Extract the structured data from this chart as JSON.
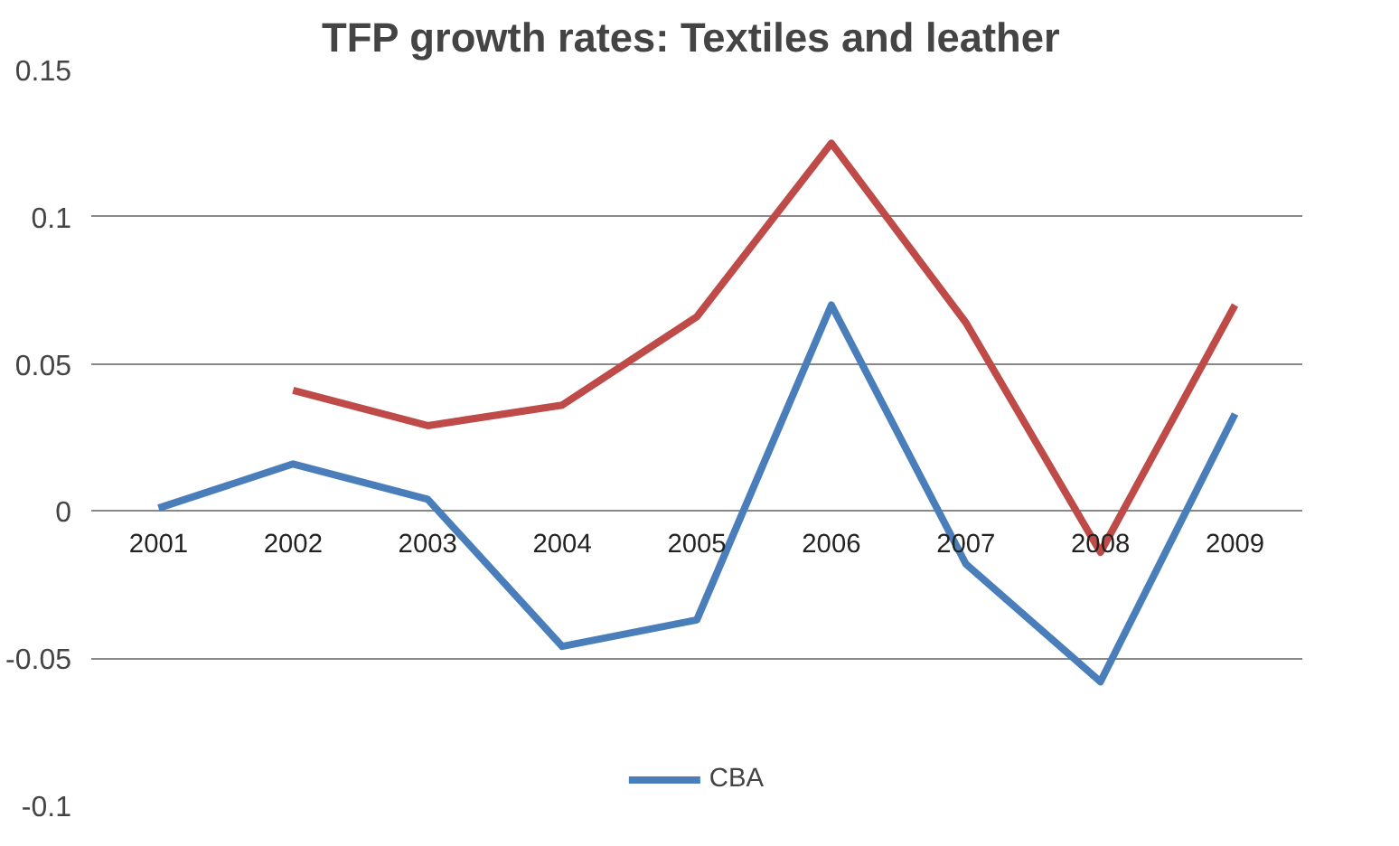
{
  "chart_data": {
    "type": "line",
    "title": "TFP growth rates: Textiles and  leather",
    "categories": [
      "2001",
      "2002",
      "2003",
      "2004",
      "2005",
      "2006",
      "2007",
      "2008",
      "2009"
    ],
    "series": [
      {
        "name": "CBA",
        "color": "#4a7ebb",
        "values": [
          0.001,
          0.016,
          0.004,
          -0.046,
          -0.037,
          0.07,
          -0.018,
          -0.058,
          0.033
        ]
      },
      {
        "color": "#be4b48",
        "values": [
          null,
          0.041,
          0.029,
          0.036,
          0.066,
          0.125,
          0.064,
          -0.014,
          0.07
        ]
      }
    ],
    "ylim": [
      -0.1,
      0.15
    ],
    "yticks": [
      -0.1,
      -0.05,
      0,
      0.05,
      0.1,
      0.15
    ],
    "grid": "y",
    "legend": "bottom",
    "marker": "none",
    "line_style": "solid"
  }
}
